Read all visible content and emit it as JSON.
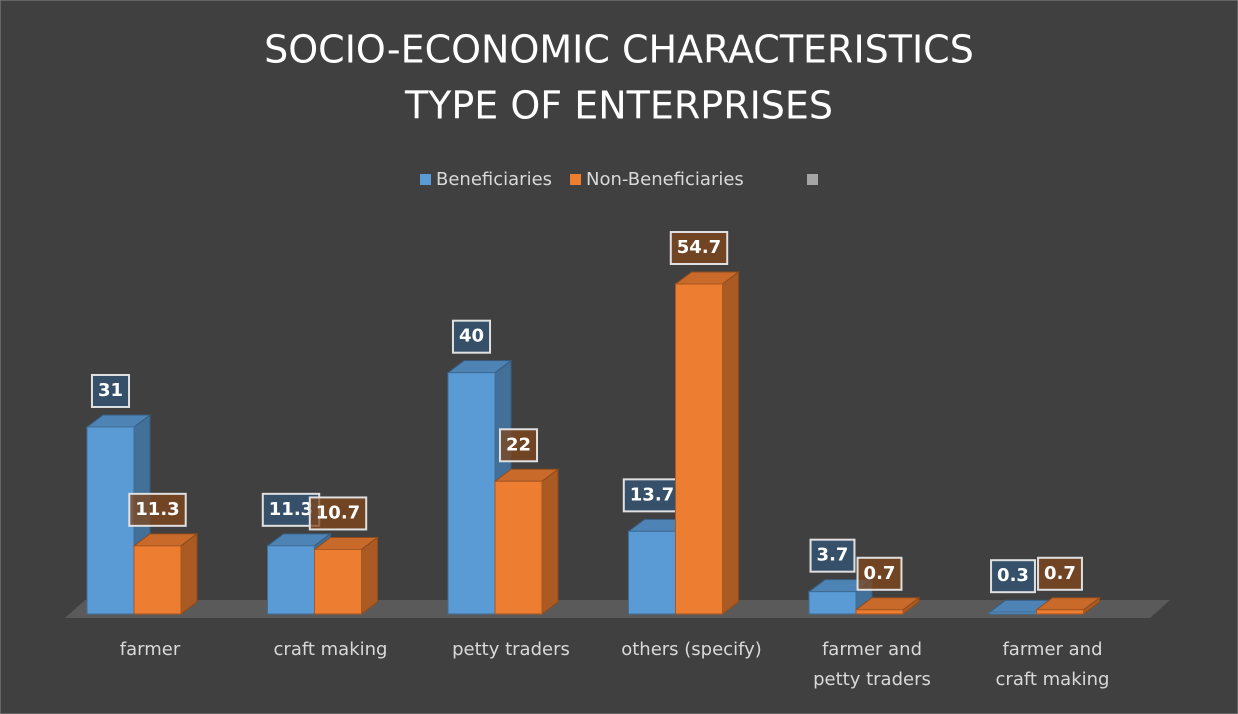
{
  "chart_data": {
    "type": "bar3d",
    "title": "SOCIO-ECONOMIC CHARACTERISTICS",
    "subtitle": "TYPE OF ENTERPRISES",
    "categories": [
      "farmer",
      "craft making",
      "petty traders",
      "others (specify)",
      "farmer and petty traders",
      "farmer and craft making"
    ],
    "series": [
      {
        "name": "Beneficiaries",
        "color": "#5b9bd5",
        "values": [
          31,
          11.3,
          40,
          13.7,
          3.7,
          0.3
        ]
      },
      {
        "name": "Non-Beneficiaries",
        "color": "#ed7d31",
        "values": [
          11.3,
          10.7,
          22,
          54.7,
          0.7,
          0.7
        ]
      }
    ],
    "legend": "top"
  }
}
